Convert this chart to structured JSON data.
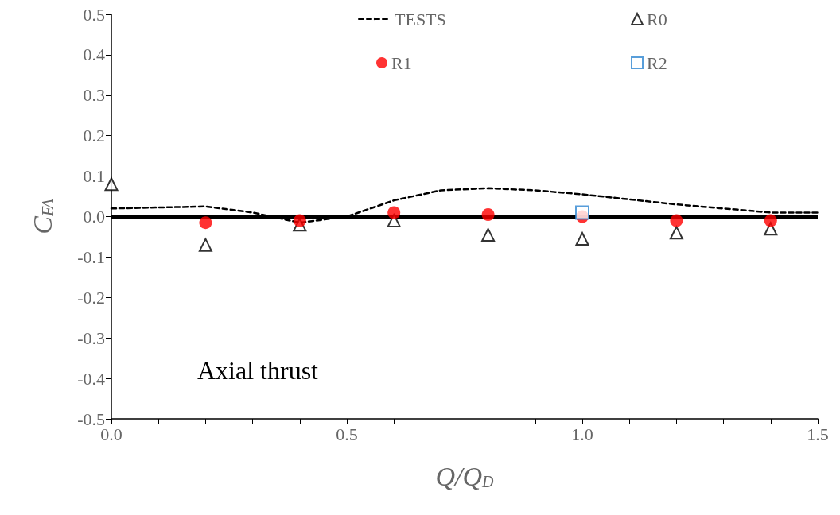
{
  "chart_data": {
    "type": "scatter",
    "xlabel": "Q/Q$_{D}$",
    "ylabel": "C$_{FA}$",
    "xlim": [
      0,
      1.5
    ],
    "ylim": [
      -0.5,
      0.5
    ],
    "xticks": [
      {
        "value": 0,
        "label": "0.0"
      },
      {
        "value": 0.1,
        "label": null
      },
      {
        "value": 0.2,
        "label": null
      },
      {
        "value": 0.3,
        "label": null
      },
      {
        "value": 0.4,
        "label": null
      },
      {
        "value": 0.5,
        "label": "0.5"
      },
      {
        "value": 0.6,
        "label": null
      },
      {
        "value": 0.7,
        "label": null
      },
      {
        "value": 0.8,
        "label": null
      },
      {
        "value": 0.9,
        "label": null
      },
      {
        "value": 1.0,
        "label": "1.0"
      },
      {
        "value": 1.1,
        "label": null
      },
      {
        "value": 1.2,
        "label": null
      },
      {
        "value": 1.3,
        "label": null
      },
      {
        "value": 1.4,
        "label": null
      },
      {
        "value": 1.5,
        "label": "1.5"
      }
    ],
    "yticks": [
      {
        "value": -0.5,
        "label": "-0.5"
      },
      {
        "value": -0.4,
        "label": "-0.4"
      },
      {
        "value": -0.3,
        "label": "-0.3"
      },
      {
        "value": -0.2,
        "label": "-0.2"
      },
      {
        "value": -0.1,
        "label": "-0.1"
      },
      {
        "value": 0,
        "label": "0.0"
      },
      {
        "value": 0.1,
        "label": "0.1"
      },
      {
        "value": 0.2,
        "label": "0.2"
      },
      {
        "value": 0.3,
        "label": "0.3"
      },
      {
        "value": 0.4,
        "label": "0.4"
      },
      {
        "value": 0.5,
        "label": "0.5"
      }
    ],
    "grid": false,
    "legend": "top",
    "series": [
      {
        "name": "TESTS",
        "type": "line",
        "line_style": "dashed",
        "marker": "none",
        "color": "#000000",
        "x": [
          0,
          0.2,
          0.3,
          0.4,
          0.5,
          0.6,
          0.7,
          0.8,
          0.9,
          1.0,
          1.2,
          1.4,
          1.5
        ],
        "values": [
          0.02,
          0.025,
          0.01,
          -0.015,
          0.0,
          0.04,
          0.065,
          0.07,
          0.065,
          0.055,
          0.03,
          0.01,
          0.01
        ]
      },
      {
        "name": "R0",
        "marker": "triangle",
        "color": "#000000",
        "x": [
          0,
          0.2,
          0.4,
          0.6,
          0.8,
          1.0,
          1.2,
          1.4
        ],
        "values": [
          0.08,
          -0.07,
          -0.02,
          -0.01,
          -0.045,
          -0.055,
          -0.04,
          -0.03
        ]
      },
      {
        "name": "R1",
        "marker": "circle",
        "color": "#ff0000",
        "x": [
          0.2,
          0.4,
          0.6,
          0.8,
          1.0,
          1.2,
          1.4
        ],
        "values": [
          -0.015,
          -0.01,
          0.01,
          0.005,
          0,
          -0.01,
          -0.01
        ]
      },
      {
        "name": "R2",
        "marker": "square",
        "color": "#2e86d1",
        "x": [
          1.0
        ],
        "values": [
          0.01
        ]
      }
    ],
    "ref_lines": [
      {
        "axis": "y",
        "value": 0,
        "color": "#000000",
        "line_style": "solid"
      }
    ],
    "annotations": [
      "Axial thrust"
    ]
  }
}
